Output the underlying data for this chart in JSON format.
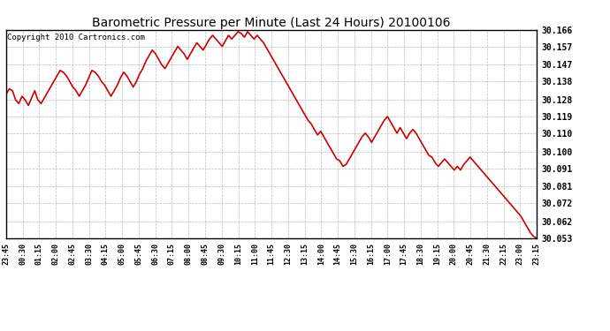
{
  "title": "Barometric Pressure per Minute (Last 24 Hours) 20100106",
  "copyright": "Copyright 2010 Cartronics.com",
  "line_color": "#cc0000",
  "background_color": "#ffffff",
  "grid_color": "#bbbbbb",
  "ylim": [
    30.053,
    30.166
  ],
  "yticks": [
    30.053,
    30.062,
    30.072,
    30.081,
    30.091,
    30.1,
    30.11,
    30.119,
    30.128,
    30.138,
    30.147,
    30.157,
    30.166
  ],
  "xtick_labels": [
    "23:45",
    "00:30",
    "01:15",
    "02:00",
    "02:45",
    "03:30",
    "04:15",
    "05:00",
    "05:45",
    "06:30",
    "07:15",
    "08:00",
    "08:45",
    "09:30",
    "10:15",
    "11:00",
    "11:45",
    "12:30",
    "13:15",
    "14:00",
    "14:45",
    "15:30",
    "16:15",
    "17:00",
    "17:45",
    "18:30",
    "19:15",
    "20:00",
    "20:45",
    "21:30",
    "22:15",
    "23:00",
    "23:15"
  ],
  "pressure_data": [
    30.131,
    30.134,
    30.133,
    30.128,
    30.126,
    30.13,
    30.128,
    30.125,
    30.129,
    30.133,
    30.128,
    30.126,
    30.129,
    30.132,
    30.135,
    30.138,
    30.141,
    30.144,
    30.143,
    30.141,
    30.138,
    30.135,
    30.133,
    30.13,
    30.133,
    30.136,
    30.14,
    30.144,
    30.143,
    30.141,
    30.138,
    30.136,
    30.133,
    30.13,
    30.133,
    30.136,
    30.14,
    30.143,
    30.141,
    30.138,
    30.135,
    30.138,
    30.142,
    30.145,
    30.149,
    30.152,
    30.155,
    30.153,
    30.15,
    30.147,
    30.145,
    30.148,
    30.151,
    30.154,
    30.157,
    30.155,
    30.153,
    30.15,
    30.153,
    30.156,
    30.159,
    30.157,
    30.155,
    30.158,
    30.161,
    30.163,
    30.161,
    30.159,
    30.157,
    30.16,
    30.163,
    30.161,
    30.163,
    30.165,
    30.164,
    30.162,
    30.165,
    30.163,
    30.161,
    30.163,
    30.161,
    30.159,
    30.156,
    30.153,
    30.15,
    30.147,
    30.144,
    30.141,
    30.138,
    30.135,
    30.132,
    30.129,
    30.126,
    30.123,
    30.12,
    30.117,
    30.115,
    30.112,
    30.109,
    30.111,
    30.108,
    30.105,
    30.102,
    30.099,
    30.096,
    30.095,
    30.092,
    30.093,
    30.096,
    30.099,
    30.102,
    30.105,
    30.108,
    30.11,
    30.108,
    30.105,
    30.108,
    30.111,
    30.114,
    30.117,
    30.119,
    30.116,
    30.113,
    30.11,
    30.113,
    30.11,
    30.107,
    30.11,
    30.112,
    30.11,
    30.107,
    30.104,
    30.101,
    30.098,
    30.097,
    30.094,
    30.092,
    30.094,
    30.096,
    30.094,
    30.092,
    30.09,
    30.092,
    30.09,
    30.093,
    30.095,
    30.097,
    30.095,
    30.093,
    30.091,
    30.089,
    30.087,
    30.085,
    30.083,
    30.081,
    30.079,
    30.077,
    30.075,
    30.073,
    30.071,
    30.069,
    30.067,
    30.065,
    30.062,
    30.059,
    30.056,
    30.054,
    30.053
  ]
}
